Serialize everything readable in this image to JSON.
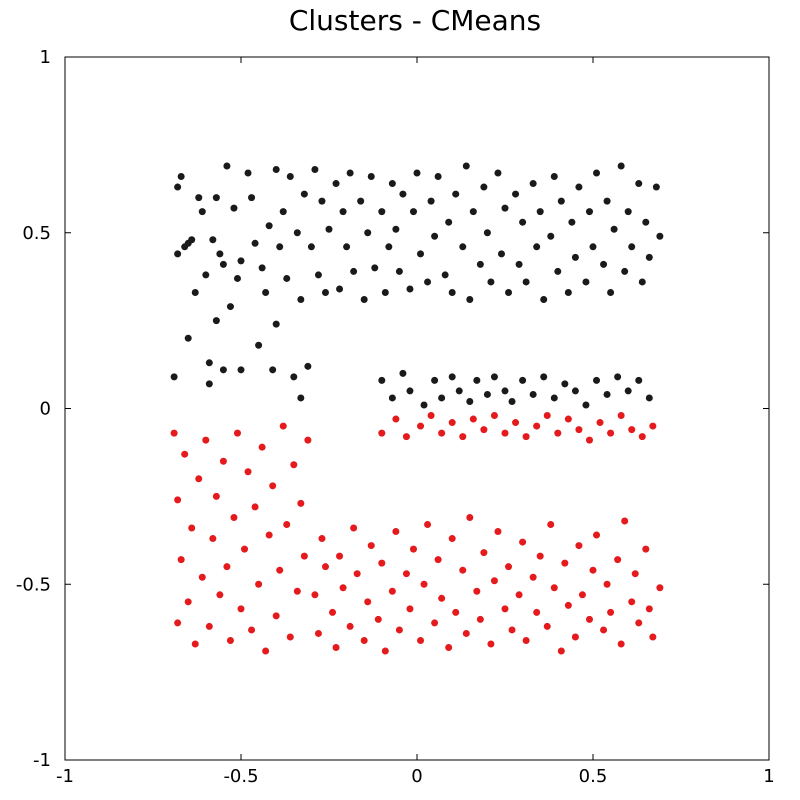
{
  "chart_data": {
    "type": "scatter",
    "title": "Clusters - CMeans",
    "xlabel": "",
    "ylabel": "",
    "xlim": [
      -1,
      1
    ],
    "ylim": [
      -1,
      1
    ],
    "x_ticks": [
      -1,
      -0.5,
      0,
      0.5,
      1
    ],
    "y_ticks": [
      -1,
      -0.5,
      0,
      0.5,
      1
    ],
    "x_tick_labels": [
      "-1",
      "-0.5",
      "0",
      "0.5",
      "1"
    ],
    "y_tick_labels": [
      "-1",
      "-0.5",
      "0",
      "0.5",
      "1"
    ],
    "grid": false,
    "legend": "none",
    "series": [
      {
        "color": "#1a1a1a",
        "points": [
          [
            -0.69,
            0.09
          ],
          [
            -0.68,
            0.44
          ],
          [
            -0.68,
            0.63
          ],
          [
            -0.67,
            0.66
          ],
          [
            -0.66,
            0.46
          ],
          [
            -0.65,
            0.47
          ],
          [
            -0.65,
            0.2
          ],
          [
            -0.64,
            0.48
          ],
          [
            -0.63,
            0.33
          ],
          [
            -0.62,
            0.6
          ],
          [
            -0.61,
            0.56
          ],
          [
            -0.6,
            0.38
          ],
          [
            -0.59,
            0.07
          ],
          [
            -0.59,
            0.13
          ],
          [
            -0.58,
            0.48
          ],
          [
            -0.57,
            0.6
          ],
          [
            -0.57,
            0.25
          ],
          [
            -0.56,
            0.44
          ],
          [
            -0.55,
            0.41
          ],
          [
            -0.55,
            0.11
          ],
          [
            -0.54,
            0.69
          ],
          [
            -0.53,
            0.29
          ],
          [
            -0.52,
            0.57
          ],
          [
            -0.51,
            0.37
          ],
          [
            -0.5,
            0.11
          ],
          [
            -0.5,
            0.42
          ],
          [
            -0.48,
            0.67
          ],
          [
            -0.47,
            0.6
          ],
          [
            -0.46,
            0.47
          ],
          [
            -0.45,
            0.18
          ],
          [
            -0.44,
            0.4
          ],
          [
            -0.43,
            0.33
          ],
          [
            -0.42,
            0.52
          ],
          [
            -0.41,
            0.11
          ],
          [
            -0.4,
            0.68
          ],
          [
            -0.4,
            0.24
          ],
          [
            -0.39,
            0.46
          ],
          [
            -0.38,
            0.56
          ],
          [
            -0.37,
            0.37
          ],
          [
            -0.36,
            0.66
          ],
          [
            -0.35,
            0.09
          ],
          [
            -0.34,
            0.5
          ],
          [
            -0.33,
            0.31
          ],
          [
            -0.33,
            0.03
          ],
          [
            -0.32,
            0.61
          ],
          [
            -0.31,
            0.12
          ],
          [
            -0.3,
            0.46
          ],
          [
            -0.29,
            0.68
          ],
          [
            -0.28,
            0.38
          ],
          [
            -0.27,
            0.59
          ],
          [
            -0.26,
            0.33
          ],
          [
            -0.25,
            0.51
          ],
          [
            -0.23,
            0.64
          ],
          [
            -0.22,
            0.34
          ],
          [
            -0.21,
            0.56
          ],
          [
            -0.2,
            0.46
          ],
          [
            -0.19,
            0.67
          ],
          [
            -0.18,
            0.39
          ],
          [
            -0.16,
            0.59
          ],
          [
            -0.15,
            0.31
          ],
          [
            -0.14,
            0.5
          ],
          [
            -0.13,
            0.66
          ],
          [
            -0.12,
            0.4
          ],
          [
            -0.1,
            0.56
          ],
          [
            -0.09,
            0.33
          ],
          [
            -0.08,
            0.46
          ],
          [
            -0.07,
            0.64
          ],
          [
            -0.06,
            0.51
          ],
          [
            -0.05,
            0.39
          ],
          [
            -0.04,
            0.61
          ],
          [
            -0.02,
            0.34
          ],
          [
            -0.01,
            0.56
          ],
          [
            0.0,
            0.67
          ],
          [
            0.01,
            0.44
          ],
          [
            0.03,
            0.36
          ],
          [
            0.04,
            0.59
          ],
          [
            0.05,
            0.49
          ],
          [
            0.06,
            0.66
          ],
          [
            0.08,
            0.38
          ],
          [
            0.09,
            0.53
          ],
          [
            0.1,
            0.33
          ],
          [
            0.11,
            0.61
          ],
          [
            0.13,
            0.46
          ],
          [
            0.14,
            0.69
          ],
          [
            0.15,
            0.31
          ],
          [
            0.16,
            0.56
          ],
          [
            0.18,
            0.41
          ],
          [
            0.19,
            0.63
          ],
          [
            0.2,
            0.5
          ],
          [
            0.21,
            0.36
          ],
          [
            0.23,
            0.67
          ],
          [
            0.24,
            0.44
          ],
          [
            0.25,
            0.57
          ],
          [
            0.26,
            0.33
          ],
          [
            0.28,
            0.61
          ],
          [
            0.29,
            0.41
          ],
          [
            0.3,
            0.53
          ],
          [
            0.31,
            0.36
          ],
          [
            0.33,
            0.64
          ],
          [
            0.34,
            0.46
          ],
          [
            0.35,
            0.56
          ],
          [
            0.36,
            0.31
          ],
          [
            0.38,
            0.49
          ],
          [
            0.39,
            0.66
          ],
          [
            0.4,
            0.39
          ],
          [
            0.41,
            0.59
          ],
          [
            0.43,
            0.33
          ],
          [
            0.44,
            0.53
          ],
          [
            0.45,
            0.43
          ],
          [
            0.46,
            0.63
          ],
          [
            0.48,
            0.36
          ],
          [
            0.49,
            0.56
          ],
          [
            0.5,
            0.46
          ],
          [
            0.51,
            0.67
          ],
          [
            0.53,
            0.41
          ],
          [
            0.54,
            0.59
          ],
          [
            0.55,
            0.33
          ],
          [
            0.56,
            0.51
          ],
          [
            0.58,
            0.69
          ],
          [
            0.59,
            0.39
          ],
          [
            0.6,
            0.56
          ],
          [
            0.61,
            0.46
          ],
          [
            0.63,
            0.64
          ],
          [
            0.64,
            0.36
          ],
          [
            0.65,
            0.53
          ],
          [
            0.66,
            0.43
          ],
          [
            0.68,
            0.63
          ],
          [
            0.69,
            0.49
          ],
          [
            -0.1,
            0.08
          ],
          [
            -0.07,
            0.03
          ],
          [
            -0.04,
            0.1
          ],
          [
            -0.02,
            0.05
          ],
          [
            0.02,
            0.01
          ],
          [
            0.05,
            0.08
          ],
          [
            0.07,
            0.03
          ],
          [
            0.1,
            0.09
          ],
          [
            0.12,
            0.05
          ],
          [
            0.15,
            0.02
          ],
          [
            0.17,
            0.08
          ],
          [
            0.2,
            0.04
          ],
          [
            0.22,
            0.09
          ],
          [
            0.25,
            0.05
          ],
          [
            0.27,
            0.02
          ],
          [
            0.3,
            0.08
          ],
          [
            0.33,
            0.04
          ],
          [
            0.36,
            0.09
          ],
          [
            0.39,
            0.03
          ],
          [
            0.42,
            0.07
          ],
          [
            0.45,
            0.05
          ],
          [
            0.48,
            0.01
          ],
          [
            0.51,
            0.08
          ],
          [
            0.54,
            0.04
          ],
          [
            0.57,
            0.09
          ],
          [
            0.6,
            0.05
          ],
          [
            0.63,
            0.08
          ],
          [
            0.66,
            0.03
          ]
        ]
      },
      {
        "color": "#e41a1c",
        "points": [
          [
            -0.69,
            -0.07
          ],
          [
            -0.68,
            -0.26
          ],
          [
            -0.68,
            -0.61
          ],
          [
            -0.67,
            -0.43
          ],
          [
            -0.66,
            -0.13
          ],
          [
            -0.65,
            -0.55
          ],
          [
            -0.64,
            -0.34
          ],
          [
            -0.63,
            -0.67
          ],
          [
            -0.62,
            -0.2
          ],
          [
            -0.61,
            -0.48
          ],
          [
            -0.6,
            -0.09
          ],
          [
            -0.59,
            -0.62
          ],
          [
            -0.58,
            -0.37
          ],
          [
            -0.57,
            -0.25
          ],
          [
            -0.56,
            -0.53
          ],
          [
            -0.55,
            -0.15
          ],
          [
            -0.54,
            -0.45
          ],
          [
            -0.53,
            -0.66
          ],
          [
            -0.52,
            -0.31
          ],
          [
            -0.51,
            -0.07
          ],
          [
            -0.5,
            -0.57
          ],
          [
            -0.49,
            -0.4
          ],
          [
            -0.48,
            -0.18
          ],
          [
            -0.47,
            -0.63
          ],
          [
            -0.46,
            -0.28
          ],
          [
            -0.45,
            -0.5
          ],
          [
            -0.44,
            -0.11
          ],
          [
            -0.43,
            -0.69
          ],
          [
            -0.42,
            -0.36
          ],
          [
            -0.41,
            -0.22
          ],
          [
            -0.4,
            -0.59
          ],
          [
            -0.39,
            -0.46
          ],
          [
            -0.38,
            -0.05
          ],
          [
            -0.37,
            -0.33
          ],
          [
            -0.36,
            -0.65
          ],
          [
            -0.35,
            -0.16
          ],
          [
            -0.34,
            -0.52
          ],
          [
            -0.33,
            -0.27
          ],
          [
            -0.32,
            -0.42
          ],
          [
            -0.31,
            -0.09
          ],
          [
            -0.29,
            -0.53
          ],
          [
            -0.28,
            -0.64
          ],
          [
            -0.27,
            -0.37
          ],
          [
            -0.26,
            -0.45
          ],
          [
            -0.24,
            -0.58
          ],
          [
            -0.23,
            -0.68
          ],
          [
            -0.22,
            -0.42
          ],
          [
            -0.21,
            -0.51
          ],
          [
            -0.19,
            -0.62
          ],
          [
            -0.18,
            -0.34
          ],
          [
            -0.17,
            -0.47
          ],
          [
            -0.15,
            -0.66
          ],
          [
            -0.14,
            -0.55
          ],
          [
            -0.13,
            -0.39
          ],
          [
            -0.11,
            -0.6
          ],
          [
            -0.1,
            -0.44
          ],
          [
            -0.09,
            -0.69
          ],
          [
            -0.07,
            -0.52
          ],
          [
            -0.06,
            -0.35
          ],
          [
            -0.05,
            -0.63
          ],
          [
            -0.03,
            -0.47
          ],
          [
            -0.02,
            -0.57
          ],
          [
            -0.01,
            -0.4
          ],
          [
            0.01,
            -0.66
          ],
          [
            0.02,
            -0.5
          ],
          [
            0.03,
            -0.33
          ],
          [
            0.05,
            -0.61
          ],
          [
            0.06,
            -0.43
          ],
          [
            0.07,
            -0.54
          ],
          [
            0.09,
            -0.68
          ],
          [
            0.1,
            -0.37
          ],
          [
            0.11,
            -0.58
          ],
          [
            0.13,
            -0.46
          ],
          [
            0.14,
            -0.64
          ],
          [
            0.15,
            -0.31
          ],
          [
            0.17,
            -0.52
          ],
          [
            0.18,
            -0.6
          ],
          [
            0.19,
            -0.41
          ],
          [
            0.21,
            -0.67
          ],
          [
            0.22,
            -0.49
          ],
          [
            0.23,
            -0.35
          ],
          [
            0.25,
            -0.57
          ],
          [
            0.26,
            -0.45
          ],
          [
            0.27,
            -0.63
          ],
          [
            0.29,
            -0.53
          ],
          [
            0.3,
            -0.38
          ],
          [
            0.31,
            -0.66
          ],
          [
            0.33,
            -0.48
          ],
          [
            0.34,
            -0.58
          ],
          [
            0.35,
            -0.42
          ],
          [
            0.37,
            -0.62
          ],
          [
            0.38,
            -0.33
          ],
          [
            0.39,
            -0.51
          ],
          [
            0.41,
            -0.69
          ],
          [
            0.42,
            -0.44
          ],
          [
            0.43,
            -0.56
          ],
          [
            0.45,
            -0.65
          ],
          [
            0.46,
            -0.39
          ],
          [
            0.47,
            -0.53
          ],
          [
            0.49,
            -0.6
          ],
          [
            0.5,
            -0.46
          ],
          [
            0.51,
            -0.36
          ],
          [
            0.53,
            -0.63
          ],
          [
            0.54,
            -0.5
          ],
          [
            0.55,
            -0.58
          ],
          [
            0.57,
            -0.43
          ],
          [
            0.58,
            -0.67
          ],
          [
            0.59,
            -0.32
          ],
          [
            0.61,
            -0.55
          ],
          [
            0.62,
            -0.47
          ],
          [
            0.63,
            -0.61
          ],
          [
            0.65,
            -0.4
          ],
          [
            0.66,
            -0.57
          ],
          [
            0.67,
            -0.65
          ],
          [
            0.69,
            -0.51
          ],
          [
            -0.1,
            -0.07
          ],
          [
            -0.06,
            -0.03
          ],
          [
            -0.03,
            -0.08
          ],
          [
            0.01,
            -0.05
          ],
          [
            0.04,
            -0.02
          ],
          [
            0.07,
            -0.07
          ],
          [
            0.1,
            -0.04
          ],
          [
            0.13,
            -0.08
          ],
          [
            0.16,
            -0.03
          ],
          [
            0.19,
            -0.06
          ],
          [
            0.22,
            -0.02
          ],
          [
            0.25,
            -0.07
          ],
          [
            0.28,
            -0.04
          ],
          [
            0.31,
            -0.08
          ],
          [
            0.34,
            -0.05
          ],
          [
            0.37,
            -0.02
          ],
          [
            0.4,
            -0.07
          ],
          [
            0.43,
            -0.03
          ],
          [
            0.46,
            -0.06
          ],
          [
            0.49,
            -0.09
          ],
          [
            0.52,
            -0.04
          ],
          [
            0.55,
            -0.07
          ],
          [
            0.58,
            -0.02
          ],
          [
            0.61,
            -0.06
          ],
          [
            0.64,
            -0.08
          ],
          [
            0.67,
            -0.05
          ]
        ]
      }
    ]
  }
}
